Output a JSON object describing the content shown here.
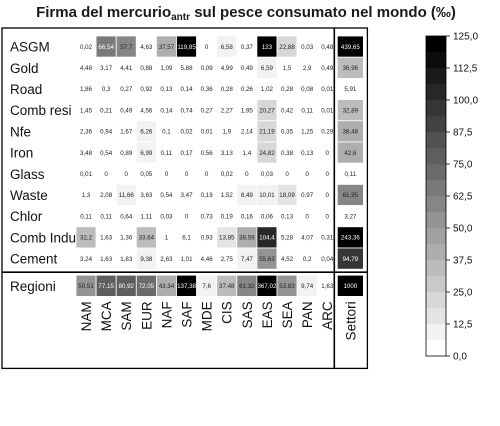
{
  "chart_data": {
    "type": "heatmap",
    "title": {
      "main": "Firma del mercurio",
      "subscript": "antr",
      "rest": " sul pesce consumato nel mondo (‰)"
    },
    "rows": [
      "ASGM",
      "Gold",
      "Road",
      "Comb resi",
      "Nfe",
      "Iron",
      "Glass",
      "Waste",
      "Chlor",
      "Comb Indu",
      "Cement"
    ],
    "columns": [
      "NAM",
      "MCA",
      "SAM",
      "EUR",
      "NAF",
      "SAF",
      "MDE",
      "CIS",
      "SAS",
      "EAS",
      "SEA",
      "PAN",
      "ARC"
    ],
    "values": [
      [
        "0,02",
        "66,54",
        "57,7",
        "4,63",
        "37,57",
        "119,85",
        "0",
        "6,58",
        "0,37",
        "123",
        "22,88",
        "0,03",
        "0,48"
      ],
      [
        "4,48",
        "3,17",
        "4,41",
        "0,88",
        "1,09",
        "5,88",
        "0,09",
        "4,99",
        "0,49",
        "6,59",
        "1,5",
        "2,9",
        "0,49"
      ],
      [
        "1,86",
        "0,3",
        "0,27",
        "0,92",
        "0,13",
        "0,14",
        "0,36",
        "0,28",
        "0,26",
        "1,02",
        "0,28",
        "0,08",
        "0,01"
      ],
      [
        "1,45",
        "0,21",
        "0,49",
        "4,56",
        "0,14",
        "0,74",
        "0,27",
        "2,27",
        "1,95",
        "20,27",
        "0,42",
        "0,11",
        "0,01"
      ],
      [
        "2,36",
        "0,94",
        "1,67",
        "6,26",
        "0,1",
        "0,02",
        "0,01",
        "1,9",
        "2,14",
        "21,19",
        "0,35",
        "1,25",
        "0,29"
      ],
      [
        "3,48",
        "0,54",
        "0,89",
        "6,99",
        "0,11",
        "0,17",
        "0,56",
        "3,13",
        "1,4",
        "24,82",
        "0,38",
        "0,13",
        "0"
      ],
      [
        "0,01",
        "0",
        "0",
        "0,05",
        "0",
        "0",
        "0",
        "0,02",
        "0",
        "0,03",
        "0",
        "0",
        "0"
      ],
      [
        "1,3",
        "2,08",
        "11,66",
        "3,63",
        "0,54",
        "3,47",
        "0,19",
        "1,52",
        "8,49",
        "10,01",
        "18,09",
        "0,97",
        "0"
      ],
      [
        "0,11",
        "0,11",
        "0,64",
        "1,11",
        "0,03",
        "0",
        "0,73",
        "0,19",
        "0,16",
        "0,06",
        "0,13",
        "0",
        "0"
      ],
      [
        "32,2",
        "1,63",
        "1,36",
        "33,64",
        "1",
        "6,1",
        "0,93",
        "13,85",
        "38,59",
        "104,4",
        "5,28",
        "4,07",
        "0,31"
      ],
      [
        "3,24",
        "1,63",
        "1,83",
        "9,38",
        "2,63",
        "1,01",
        "4,46",
        "2,75",
        "7,47",
        "55,63",
        "4,52",
        "0,2",
        "0,04"
      ]
    ],
    "row_totals_label": "Settori",
    "row_totals": [
      "439,65",
      "36,96",
      "5,91",
      "32,89",
      "38,48",
      "42,6",
      "0,11",
      "61,95",
      "3,27",
      "243,36",
      "94,79"
    ],
    "column_totals_label": "Regioni",
    "column_totals": [
      "50,51",
      "77,15",
      "80,92",
      "72,05",
      "43,34",
      "137,38",
      "7,6",
      "37,48",
      "61,32",
      "367,02",
      "53,83",
      "9,74",
      "1,63"
    ],
    "grand_total": "1000",
    "colorbar": {
      "ticks": [
        "125,0",
        "112,5",
        "100,0",
        "87,5",
        "75,0",
        "62,5",
        "50,0",
        "37,5",
        "25,0",
        "12,5",
        "0,0"
      ],
      "range": [
        0,
        125
      ],
      "steps": 20
    },
    "colors": {
      "low": "#ffffff",
      "high": "#000000",
      "grid": "#ffffff",
      "axis": "#000000"
    }
  }
}
